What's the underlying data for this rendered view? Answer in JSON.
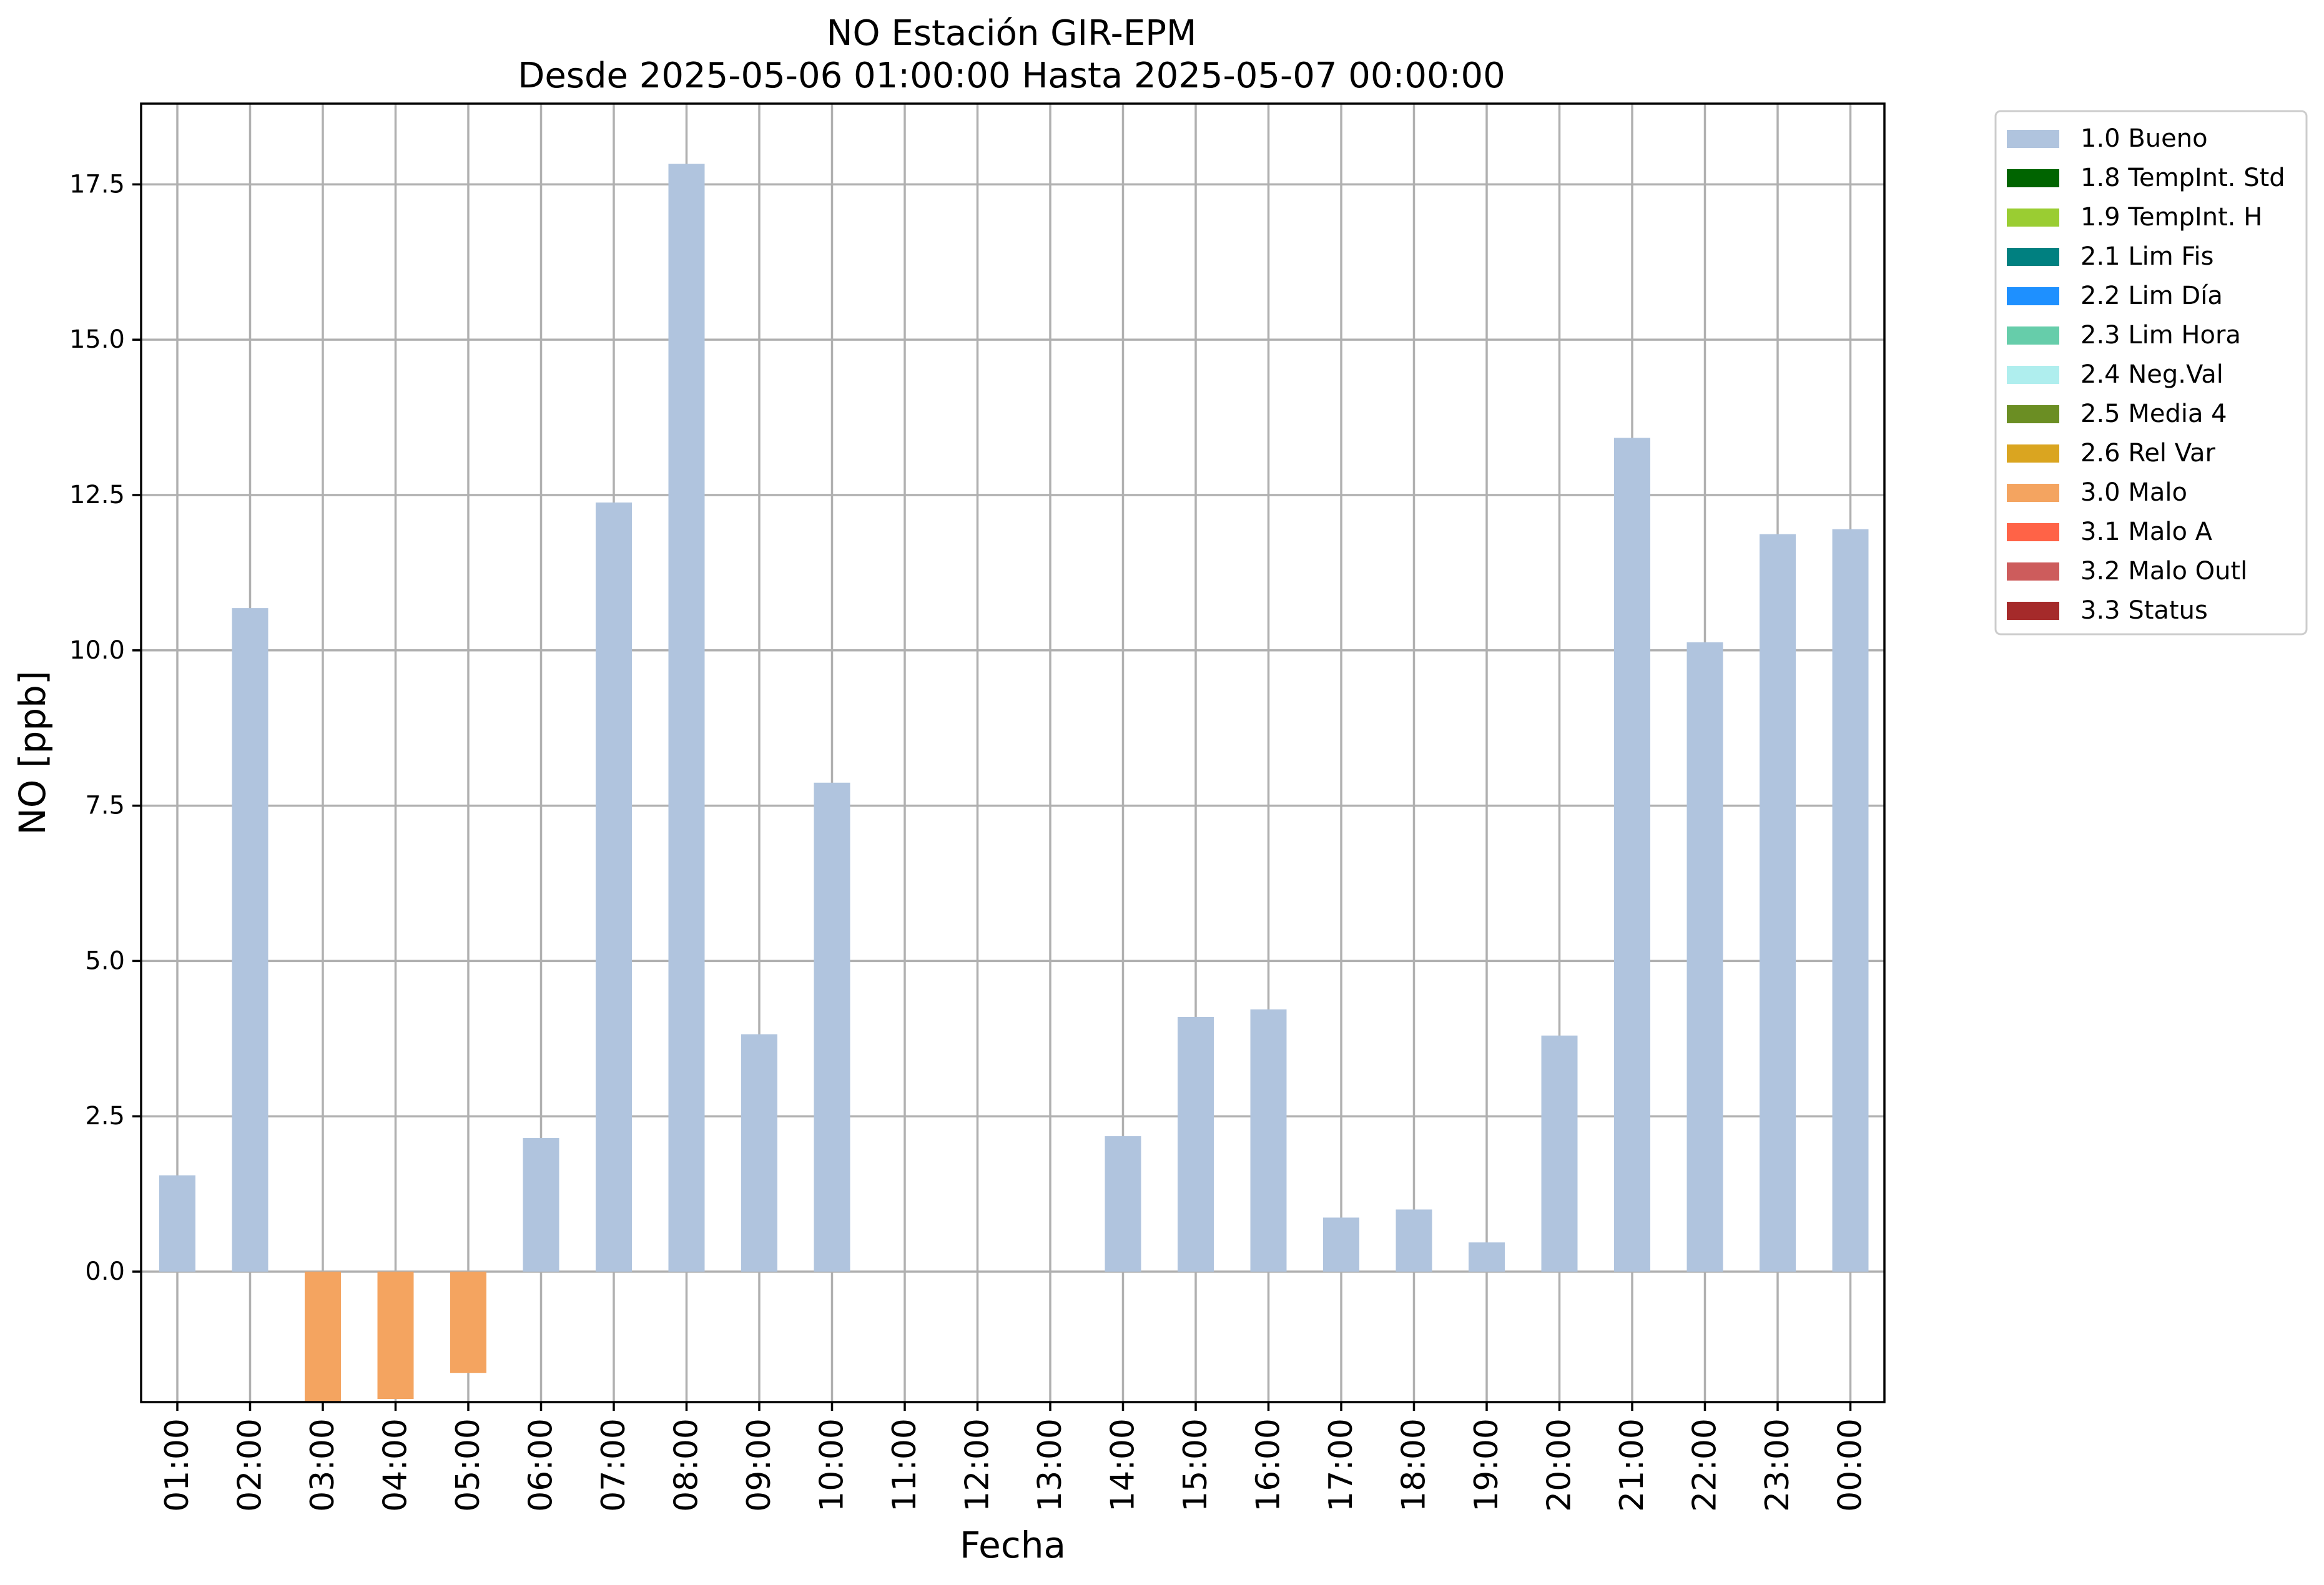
{
  "chart_data": {
    "type": "bar",
    "title": "NO Estación GIR-EPM",
    "subtitle": "Desde 2025-05-06 01:00:00 Hasta 2025-05-07 00:00:00",
    "xlabel": "Fecha",
    "ylabel": "NO [ppb]",
    "ylim": [
      -2.1,
      18.8
    ],
    "yticks": [
      "0.0",
      "2.5",
      "5.0",
      "7.5",
      "10.0",
      "12.5",
      "15.0",
      "17.5"
    ],
    "grid": true,
    "legend_position": "outside top-right",
    "categories": [
      "01:00",
      "02:00",
      "03:00",
      "04:00",
      "05:00",
      "06:00",
      "07:00",
      "08:00",
      "09:00",
      "10:00",
      "11:00",
      "12:00",
      "13:00",
      "14:00",
      "15:00",
      "16:00",
      "17:00",
      "18:00",
      "19:00",
      "20:00",
      "21:00",
      "22:00",
      "23:00",
      "00:00"
    ],
    "series": [
      {
        "name": "1.0 Bueno",
        "color": "#b0c4de",
        "values": [
          1.55,
          10.68,
          null,
          null,
          null,
          2.15,
          12.38,
          17.83,
          3.82,
          7.87,
          null,
          null,
          null,
          2.18,
          4.1,
          4.22,
          0.87,
          1.0,
          0.47,
          3.8,
          13.42,
          10.13,
          11.87,
          11.95
        ]
      },
      {
        "name": "3.0 Malo",
        "color": "#f4a460",
        "values": [
          null,
          null,
          -2.1,
          -2.05,
          -1.63,
          null,
          null,
          null,
          null,
          null,
          null,
          null,
          null,
          null,
          null,
          null,
          null,
          null,
          null,
          null,
          null,
          null,
          null,
          null
        ]
      }
    ],
    "legend": [
      {
        "label": "1.0 Bueno",
        "color": "#b0c4de"
      },
      {
        "label": "1.8 TempInt. Std",
        "color": "#006400"
      },
      {
        "label": "1.9 TempInt. H",
        "color": "#9acd32"
      },
      {
        "label": "2.1 Lim Fis",
        "color": "#008080"
      },
      {
        "label": "2.2 Lim Día",
        "color": "#1e90ff"
      },
      {
        "label": "2.3 Lim Hora",
        "color": "#66cdaa"
      },
      {
        "label": "2.4 Neg.Val",
        "color": "#afeeee"
      },
      {
        "label": "2.5 Media 4",
        "color": "#6b8e23"
      },
      {
        "label": "2.6 Rel Var",
        "color": "#daa520"
      },
      {
        "label": "3.0 Malo",
        "color": "#f4a460"
      },
      {
        "label": "3.1 Malo A",
        "color": "#ff6347"
      },
      {
        "label": "3.2 Malo Outl",
        "color": "#cd5c5c"
      },
      {
        "label": "3.3 Status",
        "color": "#a52a2a"
      }
    ]
  }
}
